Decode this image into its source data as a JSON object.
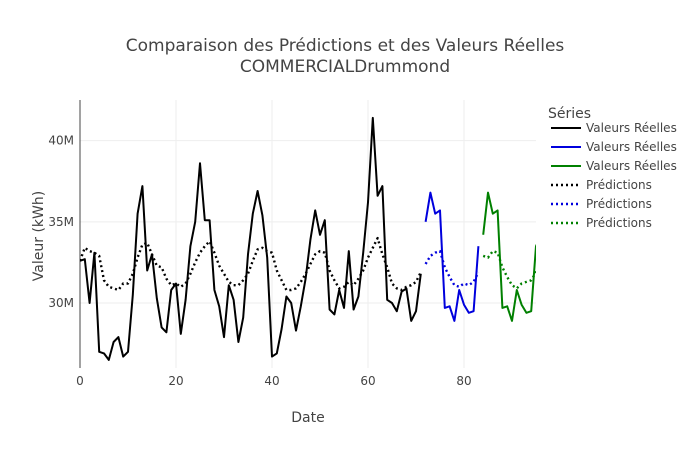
{
  "chart_data": {
    "type": "line",
    "title": "Comparaison des Prédictions et des Valeurs Réelles",
    "subtitle": "COMMERCIALDrummond",
    "xlabel": "Date",
    "ylabel": "Valeur (kWh)",
    "xlim": [
      0,
      95
    ],
    "ylim": [
      26000000,
      42500000
    ],
    "x_ticks": [
      0,
      20,
      40,
      60,
      80
    ],
    "x_tick_labels": [
      "0",
      "20",
      "40",
      "60",
      "80"
    ],
    "y_ticks": [
      30000000,
      35000000,
      40000000
    ],
    "y_tick_labels": [
      "30M",
      "35M",
      "40M"
    ],
    "grid": true,
    "legend": {
      "title": "Séries",
      "position": "right"
    },
    "series": [
      {
        "name": "Valeurs Réelles",
        "color": "#000000",
        "dash": "solid",
        "x_start": 0,
        "values": [
          32.6,
          32.7,
          30.0,
          33.1,
          27.0,
          26.9,
          26.5,
          27.6,
          27.9,
          26.7,
          27.0,
          30.5,
          35.5,
          37.2,
          32.0,
          33.0,
          30.3,
          28.5,
          28.2,
          30.8,
          31.2,
          28.1,
          30.2,
          33.5,
          35.0,
          38.6,
          35.1,
          35.1,
          30.8,
          29.8,
          27.9,
          31.1,
          30.2,
          27.6,
          29.1,
          33.0,
          35.5,
          36.9,
          35.4,
          32.8,
          26.7,
          26.9,
          28.4,
          30.4,
          30.0,
          28.3,
          29.8,
          31.5,
          33.9,
          35.7,
          34.2,
          35.1,
          29.6,
          29.3,
          30.8,
          29.7,
          33.2,
          29.6,
          30.4,
          33.1,
          36.2,
          41.4,
          36.6,
          37.2,
          30.2,
          30.0,
          29.5,
          30.7,
          30.9,
          28.9,
          29.5,
          31.8
        ]
      },
      {
        "name": "Valeurs Réelles",
        "color": "#0000dd",
        "dash": "solid",
        "x_start": 72,
        "values": [
          35.0,
          36.8,
          35.5,
          35.7,
          29.7,
          29.8,
          28.9,
          30.8,
          29.9,
          29.4,
          29.5,
          33.5
        ]
      },
      {
        "name": "Valeurs Réelles",
        "color": "#008000",
        "dash": "solid",
        "x_start": 84,
        "values": [
          34.2,
          36.8,
          35.5,
          35.7,
          29.7,
          29.8,
          28.9,
          30.8,
          29.9,
          29.4,
          29.5,
          33.5,
          34.1
        ]
      },
      {
        "name": "Prédictions",
        "color": "#000000",
        "dash": "dot",
        "x_start": 0,
        "values": [
          32.6,
          33.4,
          33.2,
          33.1,
          32.9,
          31.4,
          31.0,
          30.9,
          30.8,
          31.2,
          31.2,
          31.8,
          32.8,
          33.6,
          33.7,
          33.0,
          32.3,
          32.2,
          31.5,
          31.1,
          31.2,
          31.0,
          31.2,
          31.8,
          32.5,
          33.1,
          33.5,
          33.8,
          33.1,
          32.3,
          31.8,
          31.3,
          31.1,
          31.1,
          31.4,
          31.8,
          32.6,
          33.3,
          33.4,
          33.2,
          33.1,
          32.0,
          31.4,
          30.8,
          30.8,
          30.9,
          31.3,
          31.8,
          32.4,
          33.0,
          33.2,
          33.1,
          32.0,
          31.4,
          30.9,
          31.0,
          31.3,
          31.1,
          31.5,
          32.0,
          32.8,
          33.4,
          34.0,
          33.0,
          32.2,
          31.2,
          30.9,
          30.8,
          31.0,
          31.1,
          31.3,
          31.9
        ]
      },
      {
        "name": "Prédictions",
        "color": "#0000dd",
        "dash": "dot",
        "x_start": 72,
        "values": [
          32.4,
          32.9,
          33.1,
          33.2,
          32.2,
          31.6,
          31.1,
          31.0,
          31.2,
          31.1,
          31.3,
          31.9
        ]
      },
      {
        "name": "Prédictions",
        "color": "#008000",
        "dash": "dot",
        "x_start": 84,
        "values": [
          32.9,
          32.8,
          33.2,
          33.1,
          32.2,
          31.6,
          31.1,
          30.9,
          31.2,
          31.3,
          31.4,
          31.9,
          32.8
        ]
      }
    ]
  }
}
